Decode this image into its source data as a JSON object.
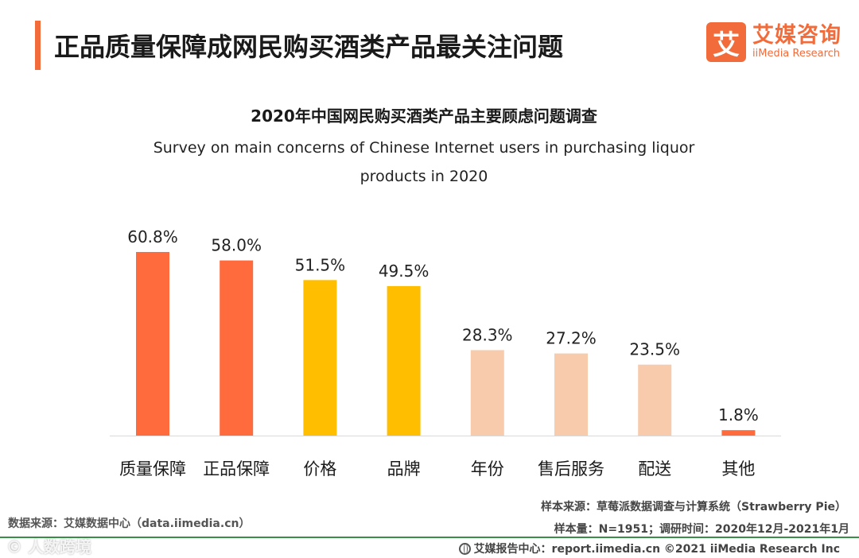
{
  "header": {
    "title": "正品质量保障成网民购买酒类产品最关注问题",
    "logo_mark": "艾",
    "logo_cn": "艾媒咨询",
    "logo_en": "iiMedia Research"
  },
  "colors": {
    "accent": "#f26b3a",
    "bar_orange": "#ff6b3d",
    "bar_yellow": "#ffbf00",
    "bar_peach": "#f8cbad",
    "footer_line": "#3a8f48"
  },
  "chart_data": {
    "type": "bar",
    "title": "2020年中国网民购买酒类产品主要顾虑问题调查",
    "subtitle": "Survey on main concerns of Chinese Internet users in purchasing liquor products in 2020",
    "categories": [
      "质量保障",
      "正品保障",
      "价格",
      "品牌",
      "年份",
      "售后服务",
      "配送",
      "其他"
    ],
    "values": [
      60.8,
      58.0,
      51.5,
      49.5,
      28.3,
      27.2,
      23.5,
      1.8
    ],
    "value_labels": [
      "60.8%",
      "58.0%",
      "51.5%",
      "49.5%",
      "28.3%",
      "27.2%",
      "23.5%",
      "1.8%"
    ],
    "bar_colors": [
      "#ff6b3d",
      "#ff6b3d",
      "#ffbf00",
      "#ffbf00",
      "#f8cbad",
      "#f8cbad",
      "#f8cbad",
      "#ff6b3d"
    ],
    "unit": "%",
    "ylim": [
      0,
      60.8
    ],
    "grid": false,
    "legend": "none"
  },
  "footer": {
    "source_left": "数据来源：艾媒数据中心（data.iimedia.cn）",
    "sample_source": "样本来源：草莓派数据调查与计算系统（Strawberry Pie）",
    "sample_info": "样本量：N=1951；调研时间：2020年12月-2021年1月",
    "report_center": "艾媒报告中心：report.iimedia.cn   ©2021  iiMedia Research  Inc",
    "watermark": "© 人数跨境"
  }
}
